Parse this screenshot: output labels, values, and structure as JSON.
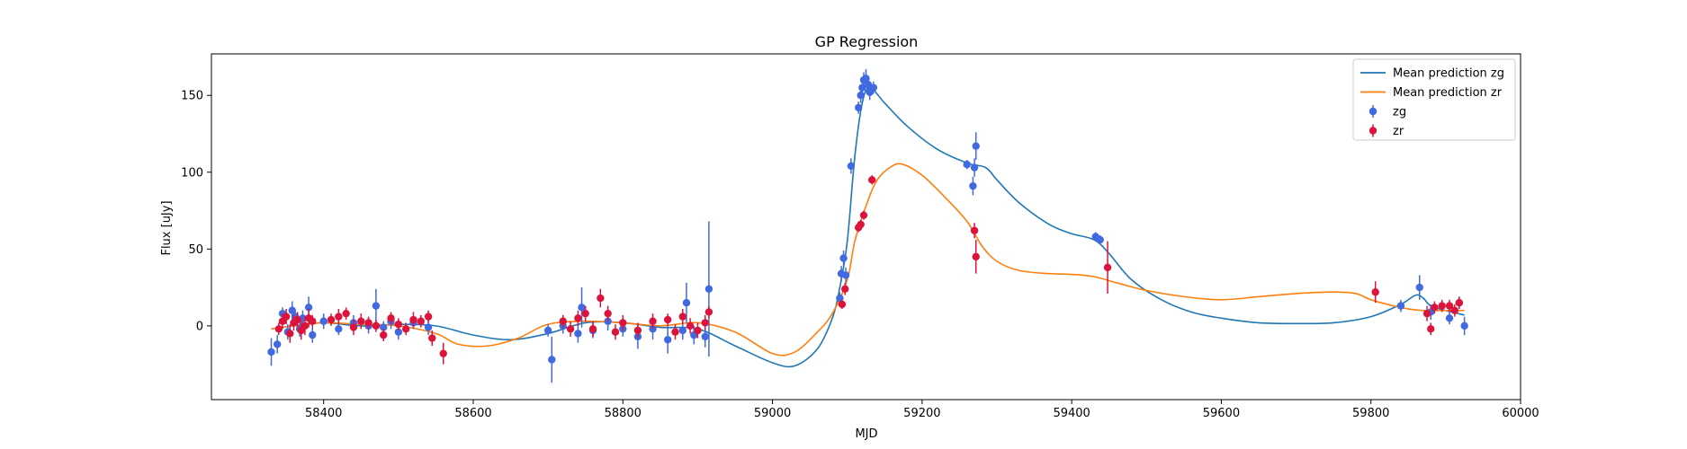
{
  "chart_data": {
    "type": "scatter",
    "title": "GP Regression",
    "xlabel": "MJD",
    "ylabel": "Flux [uJy]",
    "xlim": [
      58250,
      60000
    ],
    "ylim": [
      -48,
      177
    ],
    "xticks": [
      58400,
      58600,
      58800,
      59000,
      59200,
      59400,
      59600,
      59800,
      60000
    ],
    "yticks": [
      0,
      50,
      100,
      150
    ],
    "grid": false,
    "legend_position": "top-right",
    "colors": {
      "mean_zg": "#1f77b4",
      "mean_zr": "#ff7f0e",
      "obs_zg": "#4169e1",
      "obs_zr": "#dc143c"
    },
    "legend": [
      {
        "label": "Mean prediction zg",
        "kind": "line",
        "color": "#1f77b4"
      },
      {
        "label": "Mean prediction zr",
        "kind": "line",
        "color": "#ff7f0e"
      },
      {
        "label": "zg",
        "kind": "point",
        "color": "#4169e1"
      },
      {
        "label": "zr",
        "kind": "point",
        "color": "#dc143c"
      }
    ],
    "series": [
      {
        "name": "Mean prediction zg",
        "kind": "line",
        "color": "#1f77b4",
        "x": [
          58330,
          58360,
          58400,
          58450,
          58500,
          58550,
          58600,
          58650,
          58700,
          58750,
          58800,
          58850,
          58900,
          58950,
          59000,
          59030,
          59060,
          59080,
          59090,
          59100,
          59110,
          59120,
          59130,
          59150,
          59180,
          59220,
          59260,
          59285,
          59300,
          59330,
          59370,
          59400,
          59430,
          59450,
          59480,
          59520,
          59560,
          59600,
          59650,
          59700,
          59750,
          59800,
          59840,
          59860,
          59870,
          59880,
          59900,
          59925
        ],
        "y": [
          -2,
          0,
          2,
          0,
          1,
          0,
          -6,
          -9,
          -5,
          2,
          2,
          -1,
          -2,
          -13,
          -24,
          -26,
          -15,
          5,
          25,
          55,
          110,
          145,
          155,
          145,
          130,
          115,
          106,
          103,
          95,
          80,
          66,
          60,
          56,
          47,
          30,
          17,
          9,
          5,
          2,
          1.5,
          2,
          6,
          14,
          20,
          18,
          13,
          10,
          7
        ]
      },
      {
        "name": "Mean prediction zr",
        "kind": "line",
        "color": "#ff7f0e",
        "x": [
          58330,
          58360,
          58400,
          58450,
          58500,
          58550,
          58580,
          58620,
          58660,
          58700,
          58750,
          58800,
          58850,
          58900,
          58950,
          59000,
          59030,
          59060,
          59080,
          59100,
          59110,
          59125,
          59140,
          59160,
          59175,
          59200,
          59230,
          59260,
          59280,
          59300,
          59330,
          59370,
          59400,
          59430,
          59460,
          59500,
          59550,
          59600,
          59650,
          59700,
          59750,
          59780,
          59800,
          59830,
          59850,
          59870,
          59890,
          59910,
          59925
        ],
        "y": [
          -2,
          0,
          2,
          1,
          0,
          -5,
          -12,
          -13,
          -8,
          1,
          3,
          2,
          0,
          2,
          -4,
          -18,
          -17,
          -4,
          8,
          30,
          55,
          78,
          95,
          104,
          105,
          98,
          84,
          68,
          52,
          42,
          36,
          34,
          33.5,
          32,
          28,
          23,
          19,
          17,
          19,
          21,
          22,
          21,
          17,
          13,
          11,
          10,
          10,
          10,
          10
        ]
      },
      {
        "name": "zg",
        "kind": "points",
        "color": "#4169e1",
        "x": [
          58330,
          58338,
          58345,
          58352,
          58358,
          58362,
          58368,
          58372,
          58380,
          58385,
          58400,
          58420,
          58440,
          58460,
          58470,
          58480,
          58490,
          58500,
          58520,
          58540,
          58700,
          58705,
          58720,
          58740,
          58745,
          58760,
          58780,
          58800,
          58820,
          58840,
          58860,
          58880,
          58885,
          58895,
          58910,
          58915,
          59090,
          59092,
          59095,
          59098,
          59105,
          59115,
          59118,
          59120,
          59122,
          59125,
          59128,
          59130,
          59135,
          59260,
          59268,
          59270,
          59272,
          59432,
          59438,
          59840,
          59865,
          59880,
          59905,
          59918,
          59925
        ],
        "y": [
          -17,
          -12,
          8,
          -4,
          10,
          6,
          -2,
          5,
          12,
          -6,
          3,
          -2,
          2,
          0,
          13,
          -1,
          3,
          -4,
          2,
          -1,
          -3,
          -22,
          0,
          -5,
          12,
          -3,
          3,
          -2,
          -7,
          -2,
          -9,
          -3,
          15,
          -6,
          -7,
          24,
          18,
          34,
          44,
          33,
          104,
          142,
          150,
          155,
          160,
          161,
          157,
          152,
          155,
          105,
          91,
          103,
          117,
          58,
          56,
          13,
          25,
          9,
          5,
          15,
          0
        ],
        "yerr": [
          9,
          6,
          4,
          5,
          6,
          4,
          5,
          5,
          7,
          5,
          5,
          4,
          5,
          5,
          11,
          4,
          5,
          5,
          4,
          5,
          4,
          15,
          5,
          6,
          13,
          5,
          6,
          5,
          8,
          7,
          9,
          6,
          13,
          6,
          7,
          44,
          4,
          5,
          5,
          5,
          5,
          4,
          5,
          6,
          5,
          6,
          5,
          5,
          4,
          3,
          6,
          6,
          9,
          3,
          3,
          4,
          8,
          5,
          4,
          4,
          6
        ]
      },
      {
        "name": "zr",
        "kind": "points",
        "color": "#dc143c",
        "x": [
          58340,
          58345,
          58350,
          58355,
          58360,
          58365,
          58370,
          58375,
          58380,
          58385,
          58410,
          58420,
          58430,
          58440,
          58450,
          58460,
          58470,
          58480,
          58490,
          58500,
          58510,
          58520,
          58530,
          58540,
          58545,
          58560,
          58720,
          58730,
          58740,
          58750,
          58760,
          58770,
          58780,
          58790,
          58800,
          58820,
          58840,
          58860,
          58870,
          58880,
          58890,
          58900,
          58910,
          58915,
          59093,
          59097,
          59115,
          59118,
          59122,
          59133,
          59270,
          59272,
          59448,
          59806,
          59875,
          59880,
          59885,
          59895,
          59905,
          59912,
          59918
        ],
        "y": [
          -2,
          3,
          6,
          -5,
          2,
          4,
          -3,
          0,
          5,
          3,
          4,
          6,
          8,
          -1,
          3,
          2,
          0,
          -6,
          5,
          1,
          -2,
          4,
          3,
          6,
          -8,
          -18,
          3,
          -2,
          5,
          8,
          -2,
          18,
          8,
          -4,
          2,
          -3,
          3,
          4,
          -4,
          6,
          0,
          -3,
          2,
          9,
          14,
          24,
          64,
          66,
          72,
          95,
          62,
          45,
          38,
          22,
          8,
          -2,
          12,
          13,
          13,
          10,
          15
        ],
        "yerr": [
          4,
          5,
          5,
          6,
          5,
          5,
          6,
          6,
          6,
          4,
          4,
          5,
          4,
          5,
          5,
          4,
          4,
          4,
          4,
          4,
          4,
          5,
          4,
          4,
          5,
          7,
          4,
          5,
          5,
          5,
          5,
          6,
          5,
          5,
          5,
          5,
          5,
          4,
          5,
          5,
          5,
          5,
          5,
          4,
          3,
          4,
          3,
          3,
          3,
          3,
          5,
          11,
          17,
          7,
          5,
          4,
          4,
          4,
          4,
          4,
          4
        ]
      }
    ]
  }
}
